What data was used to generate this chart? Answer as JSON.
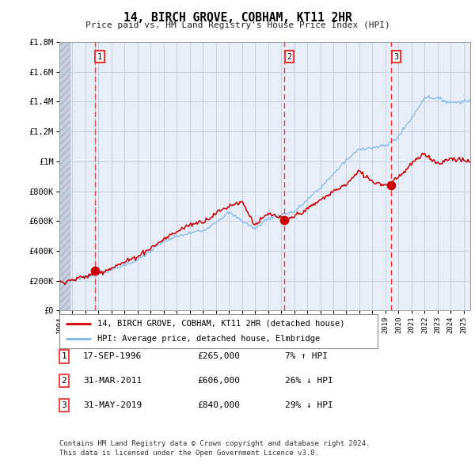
{
  "title": "14, BIRCH GROVE, COBHAM, KT11 2HR",
  "subtitle": "Price paid vs. HM Land Registry's House Price Index (HPI)",
  "ylabel_vals": [
    "£0",
    "£200K",
    "£400K",
    "£600K",
    "£800K",
    "£1M",
    "£1.2M",
    "£1.4M",
    "£1.6M",
    "£1.8M"
  ],
  "ylim": [
    0,
    1800000
  ],
  "yticks": [
    0,
    200000,
    400000,
    600000,
    800000,
    1000000,
    1200000,
    1400000,
    1600000,
    1800000
  ],
  "xmin": 1994.0,
  "xmax": 2025.5,
  "xticks": [
    1994,
    1995,
    1996,
    1997,
    1998,
    1999,
    2000,
    2001,
    2002,
    2003,
    2004,
    2005,
    2006,
    2007,
    2008,
    2009,
    2010,
    2011,
    2012,
    2013,
    2014,
    2015,
    2016,
    2017,
    2018,
    2019,
    2020,
    2021,
    2022,
    2023,
    2024,
    2025
  ],
  "sale_dates": [
    1996.71,
    2011.25,
    2019.42
  ],
  "sale_prices": [
    265000,
    606000,
    840000
  ],
  "sale_labels": [
    "1",
    "2",
    "3"
  ],
  "hpi_color": "#7eb8e8",
  "price_color": "#cc0000",
  "dashed_line_color": "#ee3333",
  "dotted_line_color": "#aaaaaa",
  "legend_house_label": "14, BIRCH GROVE, COBHAM, KT11 2HR (detached house)",
  "legend_hpi_label": "HPI: Average price, detached house, Elmbridge",
  "table_rows": [
    [
      "1",
      "17-SEP-1996",
      "£265,000",
      "7% ↑ HPI"
    ],
    [
      "2",
      "31-MAR-2011",
      "£606,000",
      "26% ↓ HPI"
    ],
    [
      "3",
      "31-MAY-2019",
      "£840,000",
      "29% ↓ HPI"
    ]
  ],
  "footer": "Contains HM Land Registry data © Crown copyright and database right 2024.\nThis data is licensed under the Open Government Licence v3.0.",
  "bg_color": "#e8eef8",
  "grid_color": "#c0cce0",
  "hatch_color": "#c8d0e0"
}
